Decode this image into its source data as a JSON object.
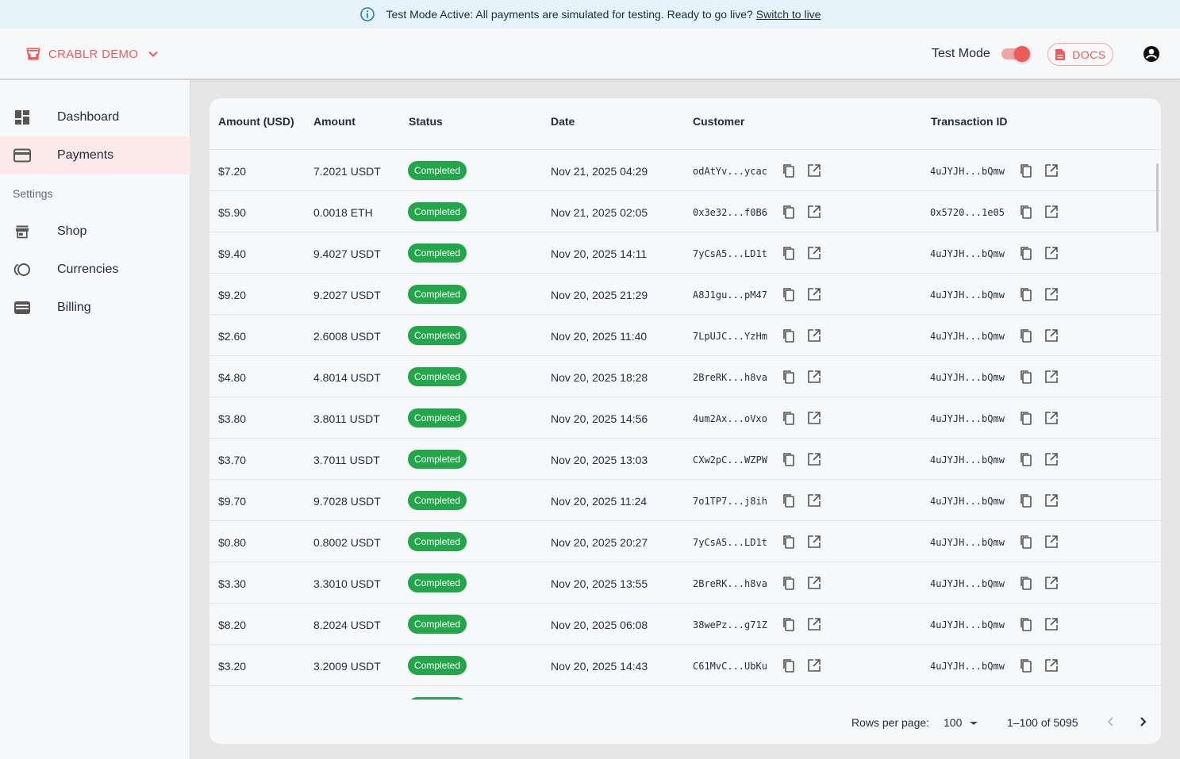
{
  "banner": {
    "text": "Test Mode Active: All payments are simulated for testing. Ready to go live?",
    "link": "Switch to live",
    "icon": "info-icon"
  },
  "header": {
    "shop_name": "CRABLR DEMO",
    "test_mode_label": "Test Mode",
    "test_mode_on": true,
    "docs_label": "DOCS",
    "accent_color": "#f15a5a"
  },
  "sidebar": {
    "items": [
      {
        "label": "Dashboard",
        "icon": "dashboard-icon"
      },
      {
        "label": "Payments",
        "icon": "credit-card-icon",
        "active": true
      }
    ],
    "settings_label": "Settings",
    "settings_items": [
      {
        "label": "Shop",
        "icon": "store-icon"
      },
      {
        "label": "Currencies",
        "icon": "currencies-icon"
      },
      {
        "label": "Billing",
        "icon": "wallet-icon"
      }
    ]
  },
  "table": {
    "columns": [
      "Amount (USD)",
      "Amount",
      "Status",
      "Date",
      "Customer",
      "Transaction ID"
    ],
    "rows": [
      {
        "usd": "$7.20",
        "amount": "7.2021 USDT",
        "status": "Completed",
        "date": "Nov 21, 2025 04:29",
        "customer": "odAtYv...ycac",
        "txid": "4uJYJH...bQmw"
      },
      {
        "usd": "$5.90",
        "amount": "0.0018 ETH",
        "status": "Completed",
        "date": "Nov 21, 2025 02:05",
        "customer": "0x3e32...f0B6",
        "txid": "0x5720...1e05"
      },
      {
        "usd": "$9.40",
        "amount": "9.4027 USDT",
        "status": "Completed",
        "date": "Nov 20, 2025 14:11",
        "customer": "7yCsA5...LD1t",
        "txid": "4uJYJH...bQmw"
      },
      {
        "usd": "$9.20",
        "amount": "9.2027 USDT",
        "status": "Completed",
        "date": "Nov 20, 2025 21:29",
        "customer": "A8J1gu...pM47",
        "txid": "4uJYJH...bQmw"
      },
      {
        "usd": "$2.60",
        "amount": "2.6008 USDT",
        "status": "Completed",
        "date": "Nov 20, 2025 11:40",
        "customer": "7LpUJC...YzHm",
        "txid": "4uJYJH...bQmw"
      },
      {
        "usd": "$4.80",
        "amount": "4.8014 USDT",
        "status": "Completed",
        "date": "Nov 20, 2025 18:28",
        "customer": "2BreRK...h8va",
        "txid": "4uJYJH...bQmw"
      },
      {
        "usd": "$3.80",
        "amount": "3.8011 USDT",
        "status": "Completed",
        "date": "Nov 20, 2025 14:56",
        "customer": "4um2Ax...oVxo",
        "txid": "4uJYJH...bQmw"
      },
      {
        "usd": "$3.70",
        "amount": "3.7011 USDT",
        "status": "Completed",
        "date": "Nov 20, 2025 13:03",
        "customer": "CXw2pC...WZPW",
        "txid": "4uJYJH...bQmw"
      },
      {
        "usd": "$9.70",
        "amount": "9.7028 USDT",
        "status": "Completed",
        "date": "Nov 20, 2025 11:24",
        "customer": "7o1TP7...j8ih",
        "txid": "4uJYJH...bQmw"
      },
      {
        "usd": "$0.80",
        "amount": "0.8002 USDT",
        "status": "Completed",
        "date": "Nov 20, 2025 20:27",
        "customer": "7yCsA5...LD1t",
        "txid": "4uJYJH...bQmw"
      },
      {
        "usd": "$3.30",
        "amount": "3.3010 USDT",
        "status": "Completed",
        "date": "Nov 20, 2025 13:55",
        "customer": "2BreRK...h8va",
        "txid": "4uJYJH...bQmw"
      },
      {
        "usd": "$8.20",
        "amount": "8.2024 USDT",
        "status": "Completed",
        "date": "Nov 20, 2025 06:08",
        "customer": "38wePz...g71Z",
        "txid": "4uJYJH...bQmw"
      },
      {
        "usd": "$3.20",
        "amount": "3.2009 USDT",
        "status": "Completed",
        "date": "Nov 20, 2025 14:43",
        "customer": "C61MvC...UbKu",
        "txid": "4uJYJH...bQmw"
      },
      {
        "usd": "",
        "amount": "",
        "status": "Completed",
        "date": "",
        "customer": "",
        "txid": ""
      }
    ],
    "status_color": "#22a64a"
  },
  "pagination": {
    "rows_per_page_label": "Rows per page:",
    "rows_per_page": "100",
    "range": "1–100 of 5095"
  }
}
